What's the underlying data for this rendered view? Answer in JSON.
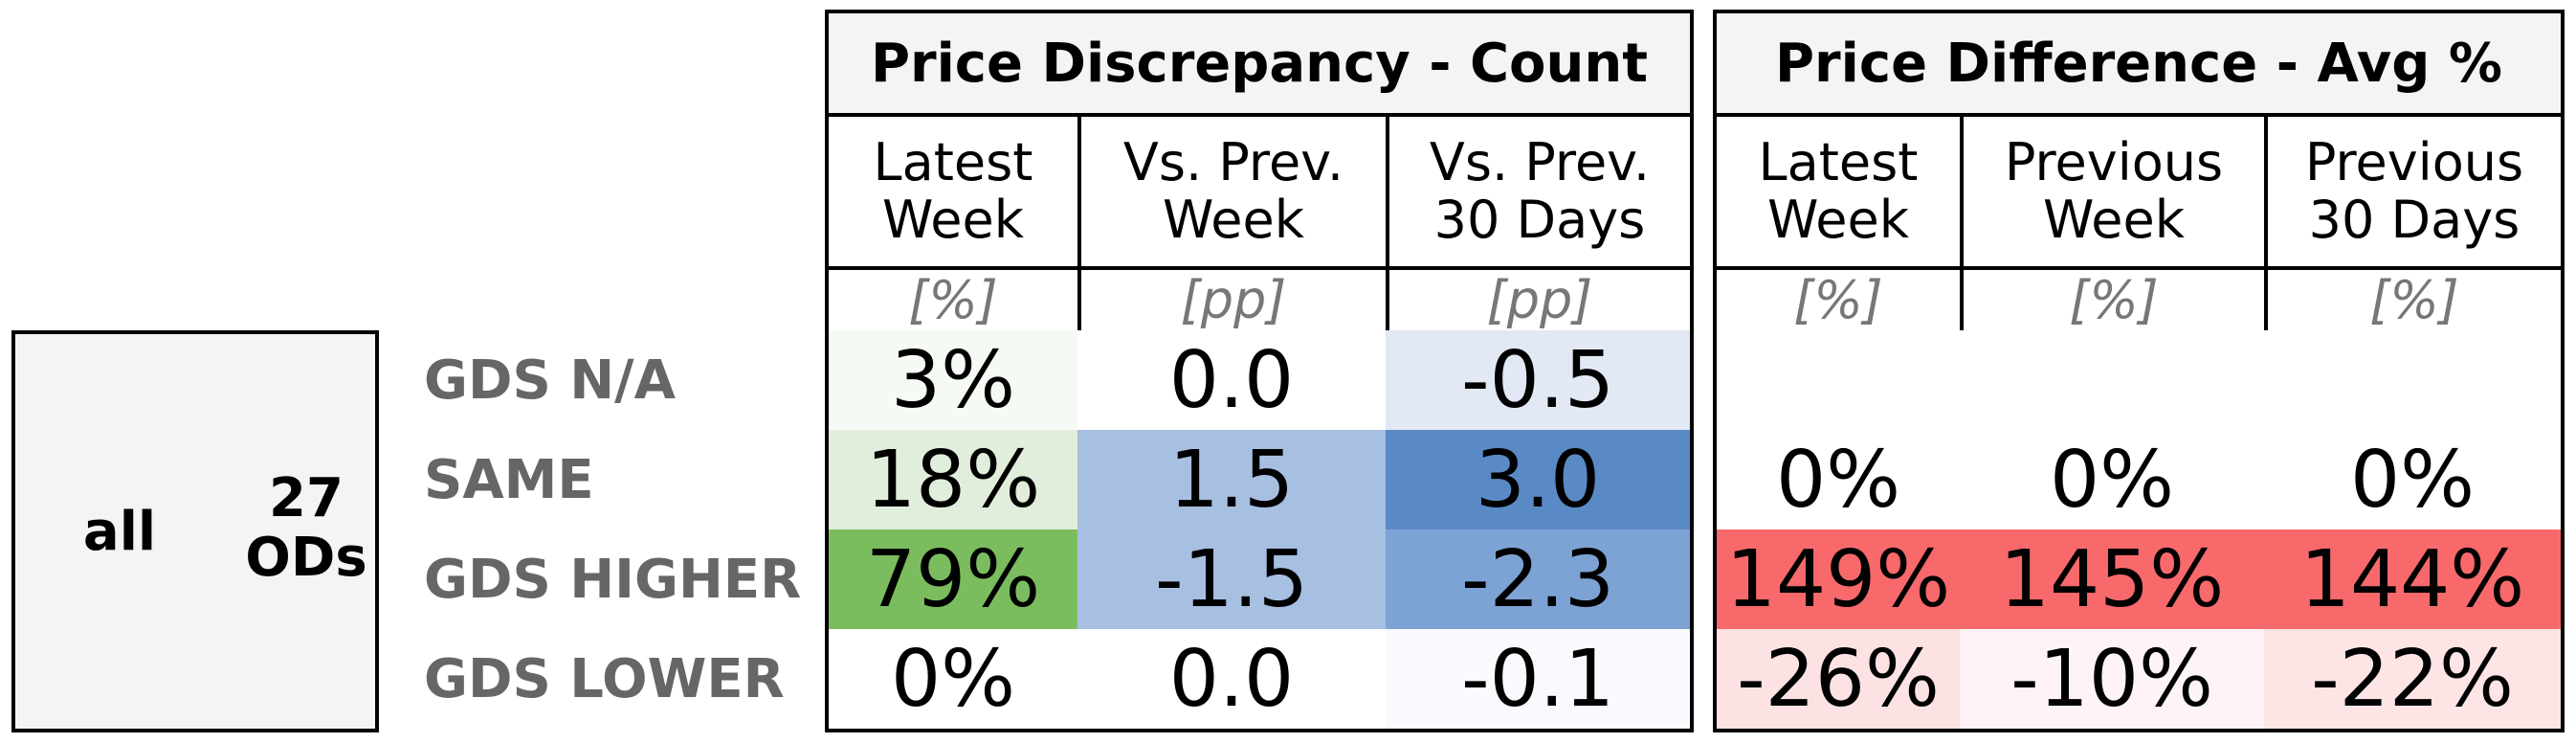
{
  "chart_data": {
    "type": "table",
    "segment": {
      "label": "all",
      "count": "27",
      "count_unit": "ODs"
    },
    "rows": [
      "GDS N/A",
      "SAME",
      "GDS HIGHER",
      "GDS LOWER"
    ],
    "groups": [
      {
        "title": "Price Discrepancy - Count",
        "columns": [
          {
            "line1": "Latest",
            "line2": "Week",
            "unit": "[%]",
            "values": [
              "3%",
              "18%",
              "79%",
              "0%"
            ],
            "colors": [
              "#f6faf4",
              "#e0eedb",
              "#7bbd5e",
              "#ffffff"
            ]
          },
          {
            "line1": "Vs. Prev.",
            "line2": "Week",
            "unit": "[pp]",
            "values": [
              "0.0",
              "1.5",
              "-1.5",
              "0.0"
            ],
            "colors": [
              "#ffffff",
              "#a7bfe1",
              "#a7bfe1",
              "#ffffff"
            ]
          },
          {
            "line1": "Vs. Prev.",
            "line2": "30 Days",
            "unit": "[pp]",
            "values": [
              "-0.5",
              "3.0",
              "-2.3",
              "-0.1"
            ],
            "colors": [
              "#e2e9f4",
              "#5a8ac6",
              "#7da2d4",
              "#f9fafd"
            ]
          }
        ]
      },
      {
        "title": "Price Difference - Avg %",
        "columns": [
          {
            "line1": "Latest",
            "line2": "Week",
            "unit": "[%]",
            "values": [
              "",
              "0%",
              "149%",
              "-26%"
            ],
            "colors": [
              "#ffffff",
              "#ffffff",
              "#f8696b",
              "#fde2e3"
            ]
          },
          {
            "line1": "Previous",
            "line2": "Week",
            "unit": "[%]",
            "values": [
              "",
              "0%",
              "145%",
              "-10%"
            ],
            "colors": [
              "#ffffff",
              "#ffffff",
              "#f8696b",
              "#fef4f5"
            ]
          },
          {
            "line1": "Previous",
            "line2": "30 Days",
            "unit": "[%]",
            "values": [
              "",
              "0%",
              "144%",
              "-22%"
            ],
            "colors": [
              "#ffffff",
              "#ffffff",
              "#f8696b",
              "#fde5e6"
            ]
          }
        ]
      }
    ],
    "styles": {
      "title_bg": "#f4f4f4",
      "label_bg": "#f4f4f4",
      "border": "#000000",
      "label_color": "#666666"
    }
  }
}
